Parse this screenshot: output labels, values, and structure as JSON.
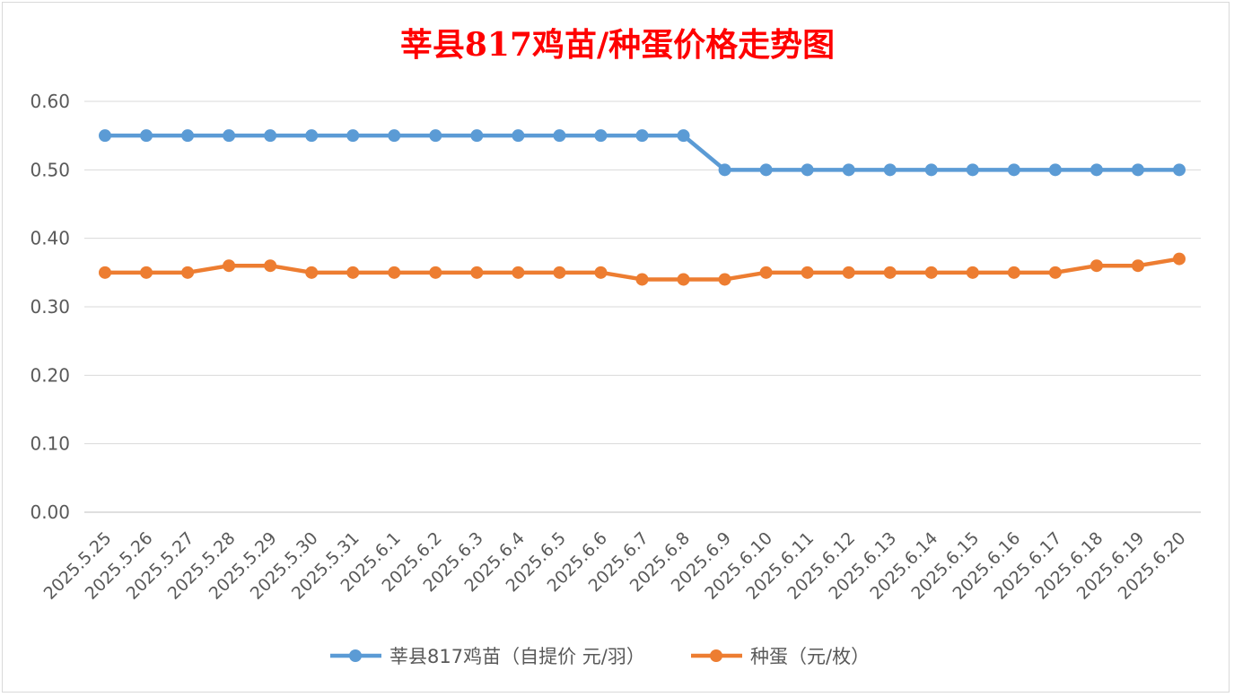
{
  "chart_data": {
    "type": "line",
    "title": "莘县817鸡苗/种蛋价格走势图",
    "title_color": "#ff0000",
    "xlabel": "",
    "ylabel": "",
    "ylim": [
      0,
      0.6
    ],
    "yticks": [
      "0.00",
      "0.10",
      "0.20",
      "0.30",
      "0.40",
      "0.50",
      "0.60"
    ],
    "grid": true,
    "legend_position": "bottom",
    "categories": [
      "2025.5.25",
      "2025.5.26",
      "2025.5.27",
      "2025.5.28",
      "2025.5.29",
      "2025.5.30",
      "2025.5.31",
      "2025.6.1",
      "2025.6.2",
      "2025.6.3",
      "2025.6.4",
      "2025.6.5",
      "2025.6.6",
      "2025.6.7",
      "2025.6.8",
      "2025.6.9",
      "2025.6.10",
      "2025.6.11",
      "2025.6.12",
      "2025.6.13",
      "2025.6.14",
      "2025.6.15",
      "2025.6.16",
      "2025.6.17",
      "2025.6.18",
      "2025.6.19",
      "2025.6.20"
    ],
    "series": [
      {
        "name": "莘县817鸡苗（自提价 元/羽）",
        "color": "#5b9bd5",
        "values": [
          0.55,
          0.55,
          0.55,
          0.55,
          0.55,
          0.55,
          0.55,
          0.55,
          0.55,
          0.55,
          0.55,
          0.55,
          0.55,
          0.55,
          0.55,
          0.5,
          0.5,
          0.5,
          0.5,
          0.5,
          0.5,
          0.5,
          0.5,
          0.5,
          0.5,
          0.5,
          0.5
        ]
      },
      {
        "name": "种蛋（元/枚）",
        "color": "#ed7d31",
        "values": [
          0.35,
          0.35,
          0.35,
          0.36,
          0.36,
          0.35,
          0.35,
          0.35,
          0.35,
          0.35,
          0.35,
          0.35,
          0.35,
          0.34,
          0.34,
          0.34,
          0.35,
          0.35,
          0.35,
          0.35,
          0.35,
          0.35,
          0.35,
          0.35,
          0.36,
          0.36,
          0.37
        ]
      }
    ]
  }
}
